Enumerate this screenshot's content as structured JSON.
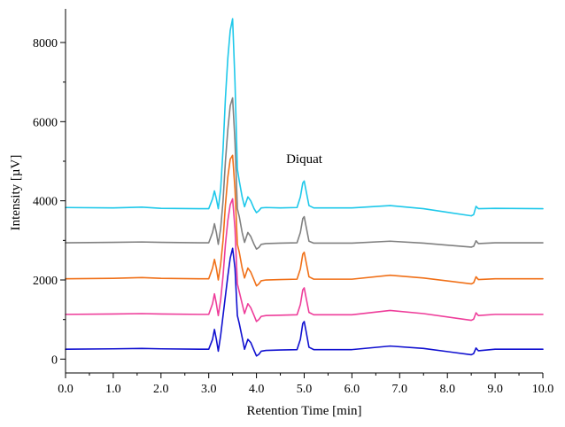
{
  "chart_data": {
    "type": "line",
    "title": "",
    "xlabel": "Retention Time [min]",
    "ylabel": "Intensity [µV]",
    "xlim": [
      0,
      10
    ],
    "ylim": [
      -350,
      8850
    ],
    "x_ticks": [
      0,
      1,
      2,
      3,
      4,
      5,
      6,
      7,
      8,
      9,
      10
    ],
    "x_tick_labels": [
      "0.0",
      "1.0",
      "2.0",
      "3.0",
      "4.0",
      "5.0",
      "6.0",
      "7.0",
      "8.0",
      "9.0",
      "10.0"
    ],
    "y_ticks": [
      0,
      2000,
      4000,
      6000,
      8000
    ],
    "y_tick_labels": [
      "0",
      "2000",
      "4000",
      "6000",
      "8000"
    ],
    "grid": false,
    "legend": "none",
    "annotations": [
      {
        "text": "Diquat",
        "x": 5.0,
        "y": 4950
      }
    ],
    "series": [
      {
        "color": "#1010d0",
        "x": [
          0,
          1,
          1.6,
          2,
          2.8,
          3.0,
          3.08,
          3.12,
          3.16,
          3.2,
          3.25,
          3.3,
          3.35,
          3.4,
          3.45,
          3.5,
          3.55,
          3.6,
          3.64,
          3.7,
          3.75,
          3.82,
          3.88,
          3.95,
          4.0,
          4.05,
          4.1,
          4.2,
          4.5,
          4.85,
          4.92,
          4.97,
          5.0,
          5.04,
          5.1,
          5.2,
          6.0,
          6.8,
          7.5,
          8.5,
          8.55,
          8.6,
          8.65,
          9.0,
          10.0
        ],
        "y": [
          250,
          260,
          270,
          260,
          250,
          250,
          500,
          750,
          500,
          200,
          600,
          1100,
          1600,
          2100,
          2550,
          2800,
          2300,
          1100,
          900,
          550,
          250,
          500,
          420,
          220,
          80,
          120,
          200,
          220,
          230,
          240,
          500,
          900,
          950,
          700,
          300,
          240,
          240,
          330,
          270,
          110,
          140,
          280,
          210,
          250,
          250
        ]
      },
      {
        "color": "#ee3d9a",
        "x": [
          0,
          1,
          1.6,
          2,
          2.8,
          3.0,
          3.08,
          3.12,
          3.16,
          3.2,
          3.25,
          3.3,
          3.35,
          3.4,
          3.45,
          3.5,
          3.55,
          3.6,
          3.64,
          3.7,
          3.75,
          3.82,
          3.88,
          3.95,
          4.0,
          4.05,
          4.1,
          4.2,
          4.5,
          4.85,
          4.92,
          4.97,
          5.0,
          5.04,
          5.1,
          5.2,
          6.0,
          6.8,
          7.5,
          8.5,
          8.55,
          8.6,
          8.65,
          9.0,
          10.0
        ],
        "y": [
          1130,
          1140,
          1150,
          1140,
          1130,
          1130,
          1400,
          1650,
          1400,
          1100,
          1500,
          2100,
          2900,
          3500,
          3900,
          4050,
          3300,
          1900,
          1700,
          1400,
          1150,
          1400,
          1300,
          1100,
          950,
          1000,
          1080,
          1100,
          1110,
          1120,
          1380,
          1750,
          1800,
          1550,
          1180,
          1120,
          1120,
          1230,
          1150,
          980,
          1010,
          1170,
          1100,
          1130,
          1130
        ]
      },
      {
        "color": "#f07018",
        "x": [
          0,
          1,
          1.6,
          2,
          2.8,
          3.0,
          3.08,
          3.12,
          3.16,
          3.2,
          3.25,
          3.3,
          3.35,
          3.4,
          3.45,
          3.5,
          3.55,
          3.6,
          3.64,
          3.7,
          3.75,
          3.82,
          3.88,
          3.95,
          4.0,
          4.05,
          4.1,
          4.2,
          4.5,
          4.85,
          4.92,
          4.97,
          5.0,
          5.04,
          5.1,
          5.2,
          6.0,
          6.8,
          7.5,
          8.5,
          8.55,
          8.6,
          8.65,
          9.0,
          10.0
        ],
        "y": [
          2030,
          2040,
          2060,
          2040,
          2030,
          2030,
          2300,
          2520,
          2300,
          2000,
          2400,
          3000,
          3900,
          4600,
          5050,
          5150,
          4300,
          2900,
          2700,
          2300,
          2050,
          2300,
          2200,
          2000,
          1850,
          1900,
          1980,
          2000,
          2010,
          2020,
          2280,
          2650,
          2700,
          2450,
          2080,
          2020,
          2020,
          2120,
          2050,
          1900,
          1930,
          2080,
          2010,
          2030,
          2030
        ]
      },
      {
        "color": "#808080",
        "x": [
          0,
          1,
          1.6,
          2,
          2.8,
          3.0,
          3.08,
          3.12,
          3.16,
          3.2,
          3.25,
          3.3,
          3.35,
          3.4,
          3.45,
          3.5,
          3.55,
          3.6,
          3.64,
          3.7,
          3.75,
          3.82,
          3.88,
          3.95,
          4.0,
          4.05,
          4.1,
          4.2,
          4.5,
          4.85,
          4.92,
          4.97,
          5.0,
          5.04,
          5.1,
          5.2,
          6.0,
          6.8,
          7.5,
          8.5,
          8.55,
          8.6,
          8.65,
          9.0,
          10.0
        ],
        "y": [
          2940,
          2950,
          2960,
          2950,
          2940,
          2940,
          3200,
          3420,
          3200,
          2900,
          3300,
          4000,
          5000,
          5800,
          6400,
          6600,
          5500,
          3800,
          3600,
          3200,
          2950,
          3200,
          3100,
          2900,
          2780,
          2820,
          2900,
          2920,
          2930,
          2940,
          3200,
          3550,
          3600,
          3350,
          2980,
          2930,
          2930,
          2980,
          2930,
          2830,
          2850,
          2990,
          2920,
          2940,
          2940
        ]
      },
      {
        "color": "#1ec8ea",
        "x": [
          0,
          1,
          1.6,
          2,
          2.8,
          3.0,
          3.08,
          3.12,
          3.16,
          3.2,
          3.25,
          3.3,
          3.35,
          3.4,
          3.45,
          3.5,
          3.55,
          3.6,
          3.64,
          3.7,
          3.75,
          3.82,
          3.88,
          3.95,
          4.0,
          4.05,
          4.1,
          4.2,
          4.5,
          4.85,
          4.92,
          4.97,
          5.0,
          5.04,
          5.1,
          5.2,
          6.0,
          6.8,
          7.5,
          8.5,
          8.55,
          8.6,
          8.65,
          9.0,
          10.0
        ],
        "y": [
          3830,
          3820,
          3840,
          3810,
          3800,
          3800,
          4050,
          4250,
          4050,
          3800,
          4300,
          5300,
          6600,
          7600,
          8300,
          8600,
          7000,
          4800,
          4500,
          4100,
          3850,
          4100,
          4000,
          3800,
          3700,
          3750,
          3820,
          3830,
          3820,
          3830,
          4100,
          4450,
          4500,
          4250,
          3880,
          3820,
          3820,
          3880,
          3800,
          3620,
          3650,
          3860,
          3800,
          3810,
          3800
        ]
      }
    ]
  }
}
